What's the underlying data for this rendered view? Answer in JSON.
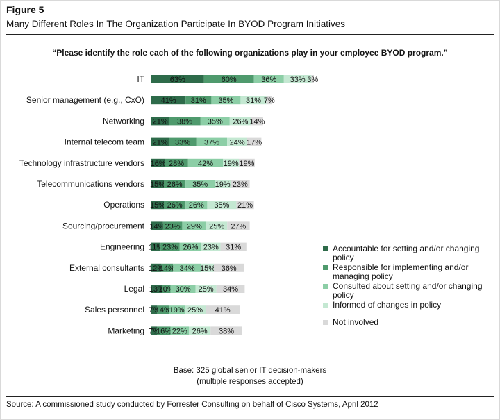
{
  "figure_label": "Figure 5",
  "figure_title": "Many Different Roles In The Organization Participate In BYOD Program Initiatives",
  "base_note_line1": "Base: 325 global senior IT decision-makers",
  "base_note_line2": "(multiple responses accepted)",
  "source": "Source: A commissioned study conducted by Forrester Consulting on behalf of Cisco Systems, April 2012",
  "chart_data": {
    "type": "bar",
    "orientation": "horizontal",
    "stacked": true,
    "title": "“Please identify the role each of the following organizations play in your employee BYOD program.”",
    "categories": [
      "IT",
      "Senior management (e.g., CxO)",
      "Networking",
      "Internal telecom team",
      "Technology infrastructure vendors",
      "Telecommunications vendors",
      "Operations",
      "Sourcing/procurement",
      "Engineering",
      "External consultants",
      "Legal",
      "Sales personnel",
      "Marketing"
    ],
    "series": [
      {
        "name": "Accountable for setting and/or changing policy",
        "color": "#2e6b4a",
        "values": [
          63,
          41,
          21,
          21,
          16,
          15,
          15,
          14,
          11,
          12,
          13,
          7,
          7
        ]
      },
      {
        "name": "Responsible for implementing and/or managing policy",
        "color": "#4f9a6d",
        "values": [
          60,
          31,
          38,
          33,
          28,
          26,
          26,
          23,
          23,
          14,
          10,
          14,
          16
        ]
      },
      {
        "name": "Consulted about setting and/or changing policy",
        "color": "#8ccea6",
        "values": [
          36,
          35,
          35,
          37,
          42,
          35,
          26,
          29,
          26,
          34,
          30,
          19,
          22
        ]
      },
      {
        "name": "Informed of changes in policy",
        "color": "#c4e8d2",
        "values": [
          33,
          31,
          26,
          24,
          19,
          19,
          35,
          25,
          23,
          15,
          25,
          25,
          26
        ]
      },
      {
        "name": "Not involved",
        "color": "#d9d9d9",
        "values": [
          3,
          7,
          14,
          17,
          19,
          23,
          21,
          27,
          31,
          36,
          34,
          41,
          38
        ]
      }
    ],
    "data_labels": [
      [
        "63%",
        "41%",
        "21%",
        "21%",
        "16%",
        "15%",
        "15%",
        "14%",
        "11%",
        "12%",
        "13%",
        "7%",
        "7%"
      ],
      [
        "60%",
        "31%",
        "38%",
        "33%",
        "28%",
        "26%",
        "26%",
        "23%",
        "23%",
        "14%",
        "10%",
        "14%",
        "16%"
      ],
      [
        "36%",
        "35%",
        "35%",
        "37%",
        "42%",
        "35%",
        "26%",
        "29%",
        "26%",
        "34%",
        "30%",
        "19%",
        "22%"
      ],
      [
        "33%",
        "31%",
        "26%",
        "24%",
        "19%",
        "19%",
        "35%",
        "25%",
        "23%",
        "15%",
        "25%",
        "25%",
        "26%"
      ],
      [
        "3%",
        "7%",
        "14%",
        "17%",
        "19%",
        "23%",
        "21%",
        "27%",
        "31%",
        "36%",
        "34%",
        "41%",
        "38%"
      ]
    ],
    "legend_position": "right",
    "grid": false
  }
}
